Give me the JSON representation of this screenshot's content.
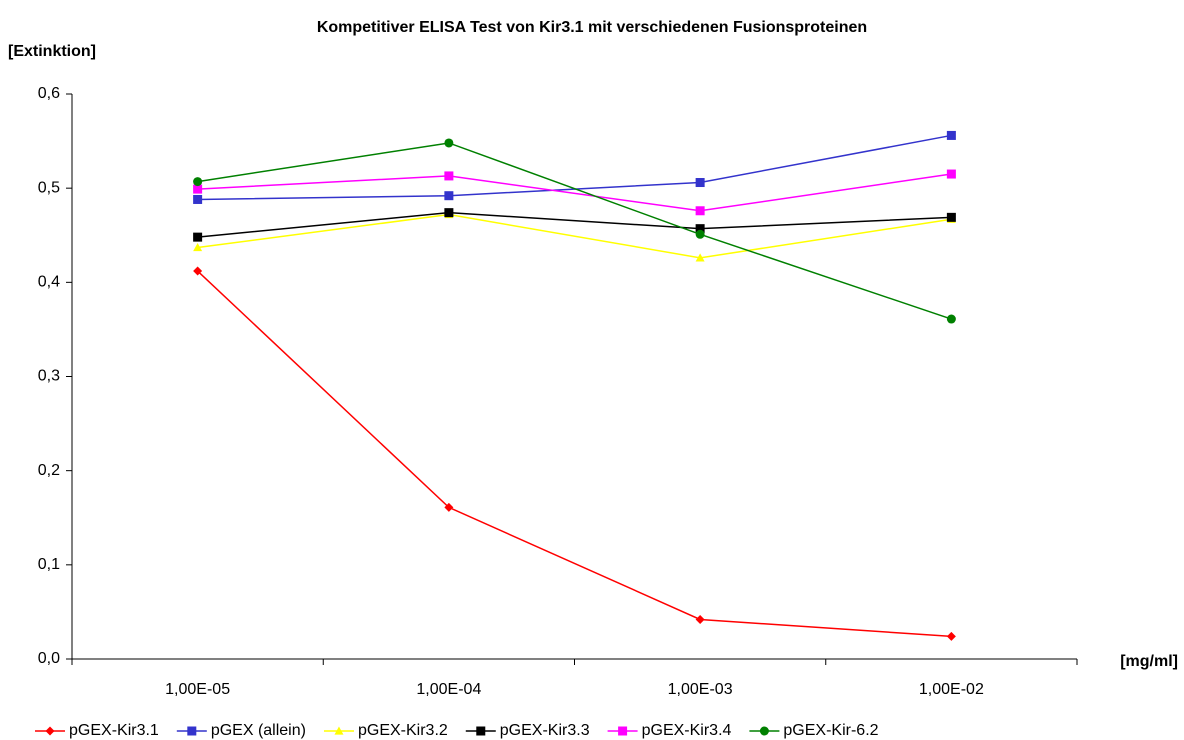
{
  "chart_data": {
    "type": "line",
    "title": "Kompetitiver ELISA Test von Kir3.1 mit verschiedenen Fusionsproteinen",
    "ylabel": "[Extinktion]",
    "xlabel": "[mg/ml]",
    "categories": [
      "1,00E-05",
      "1,00E-04",
      "1,00E-03",
      "1,00E-02"
    ],
    "series": [
      {
        "name": "pGEX-Kir3.1",
        "color": "#ff0000",
        "marker": "diamond",
        "values": [
          0.412,
          0.161,
          0.042,
          0.024
        ]
      },
      {
        "name": "pGEX (allein)",
        "color": "#3333cc",
        "marker": "square",
        "values": [
          0.488,
          0.492,
          0.506,
          0.556
        ]
      },
      {
        "name": "pGEX-Kir3.2",
        "color": "#ffff00",
        "marker": "triangle",
        "values": [
          0.437,
          0.472,
          0.426,
          0.467
        ]
      },
      {
        "name": "pGEX-Kir3.3",
        "color": "#000000",
        "marker": "square",
        "values": [
          0.448,
          0.474,
          0.457,
          0.469
        ]
      },
      {
        "name": "pGEX-Kir3.4",
        "color": "#ff00ff",
        "marker": "square",
        "values": [
          0.499,
          0.513,
          0.476,
          0.515
        ]
      },
      {
        "name": "pGEX-Kir-6.2",
        "color": "#008000",
        "marker": "circle",
        "values": [
          0.507,
          0.548,
          0.451,
          0.361
        ]
      }
    ],
    "ylim": [
      0,
      0.6
    ],
    "yticks": [
      {
        "value": 0,
        "label": "0,0"
      },
      {
        "value": 0.1,
        "label": "0,1"
      },
      {
        "value": 0.2,
        "label": "0,2"
      },
      {
        "value": 0.3,
        "label": "0,3"
      },
      {
        "value": 0.4,
        "label": "0,4"
      },
      {
        "value": 0.5,
        "label": "0,5"
      },
      {
        "value": 0.6,
        "label": "0,6"
      }
    ],
    "grid": false,
    "legend": "bottom"
  }
}
